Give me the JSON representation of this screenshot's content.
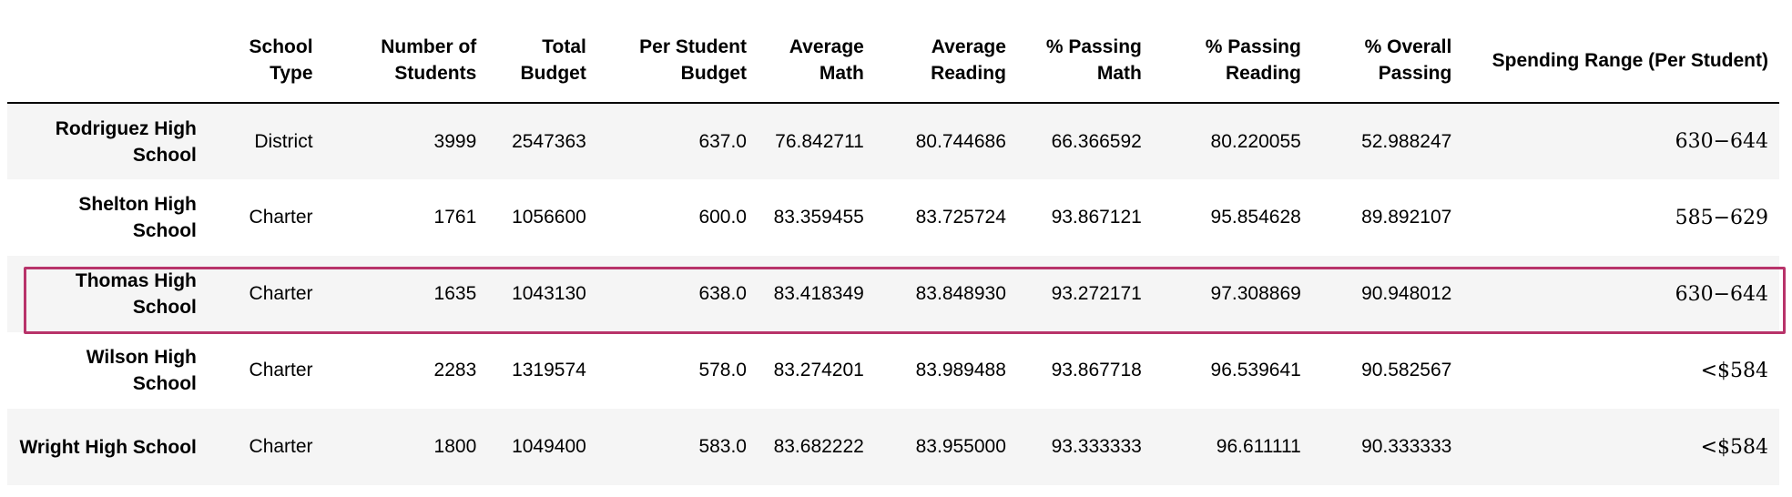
{
  "table": {
    "columns": [
      "",
      "School Type",
      "Number of Students",
      "Total Budget",
      "Per Student Budget",
      "Average Math",
      "Average Reading",
      "% Passing Math",
      "% Passing Reading",
      "% Overall Passing",
      "Spending Range (Per Student)"
    ],
    "rows": [
      {
        "school": "Rodriguez High School",
        "type": "District",
        "students": "3999",
        "budget": "2547363",
        "per_student": "637.0",
        "avg_math": "76.842711",
        "avg_reading": "80.744686",
        "pass_math": "66.366592",
        "pass_reading": "80.220055",
        "overall": "52.988247",
        "range": "630−644"
      },
      {
        "school": "Shelton High School",
        "type": "Charter",
        "students": "1761",
        "budget": "1056600",
        "per_student": "600.0",
        "avg_math": "83.359455",
        "avg_reading": "83.725724",
        "pass_math": "93.867121",
        "pass_reading": "95.854628",
        "overall": "89.892107",
        "range": "585−629"
      },
      {
        "school": "Thomas High School",
        "type": "Charter",
        "students": "1635",
        "budget": "1043130",
        "per_student": "638.0",
        "avg_math": "83.418349",
        "avg_reading": "83.848930",
        "pass_math": "93.272171",
        "pass_reading": "97.308869",
        "overall": "90.948012",
        "range": "630−644"
      },
      {
        "school": "Wilson High School",
        "type": "Charter",
        "students": "2283",
        "budget": "1319574",
        "per_student": "578.0",
        "avg_math": "83.274201",
        "avg_reading": "83.989488",
        "pass_math": "93.867718",
        "pass_reading": "96.539641",
        "overall": "90.582567",
        "range": "<$584"
      },
      {
        "school": "Wright High School",
        "type": "Charter",
        "students": "1800",
        "budget": "1049400",
        "per_student": "583.0",
        "avg_math": "83.682222",
        "avg_reading": "83.955000",
        "pass_math": "93.333333",
        "pass_reading": "96.611111",
        "overall": "90.333333",
        "range": "<$584"
      }
    ]
  },
  "colors": {
    "highlight_border": "#b8336a",
    "stripe": "#f5f5f5"
  }
}
